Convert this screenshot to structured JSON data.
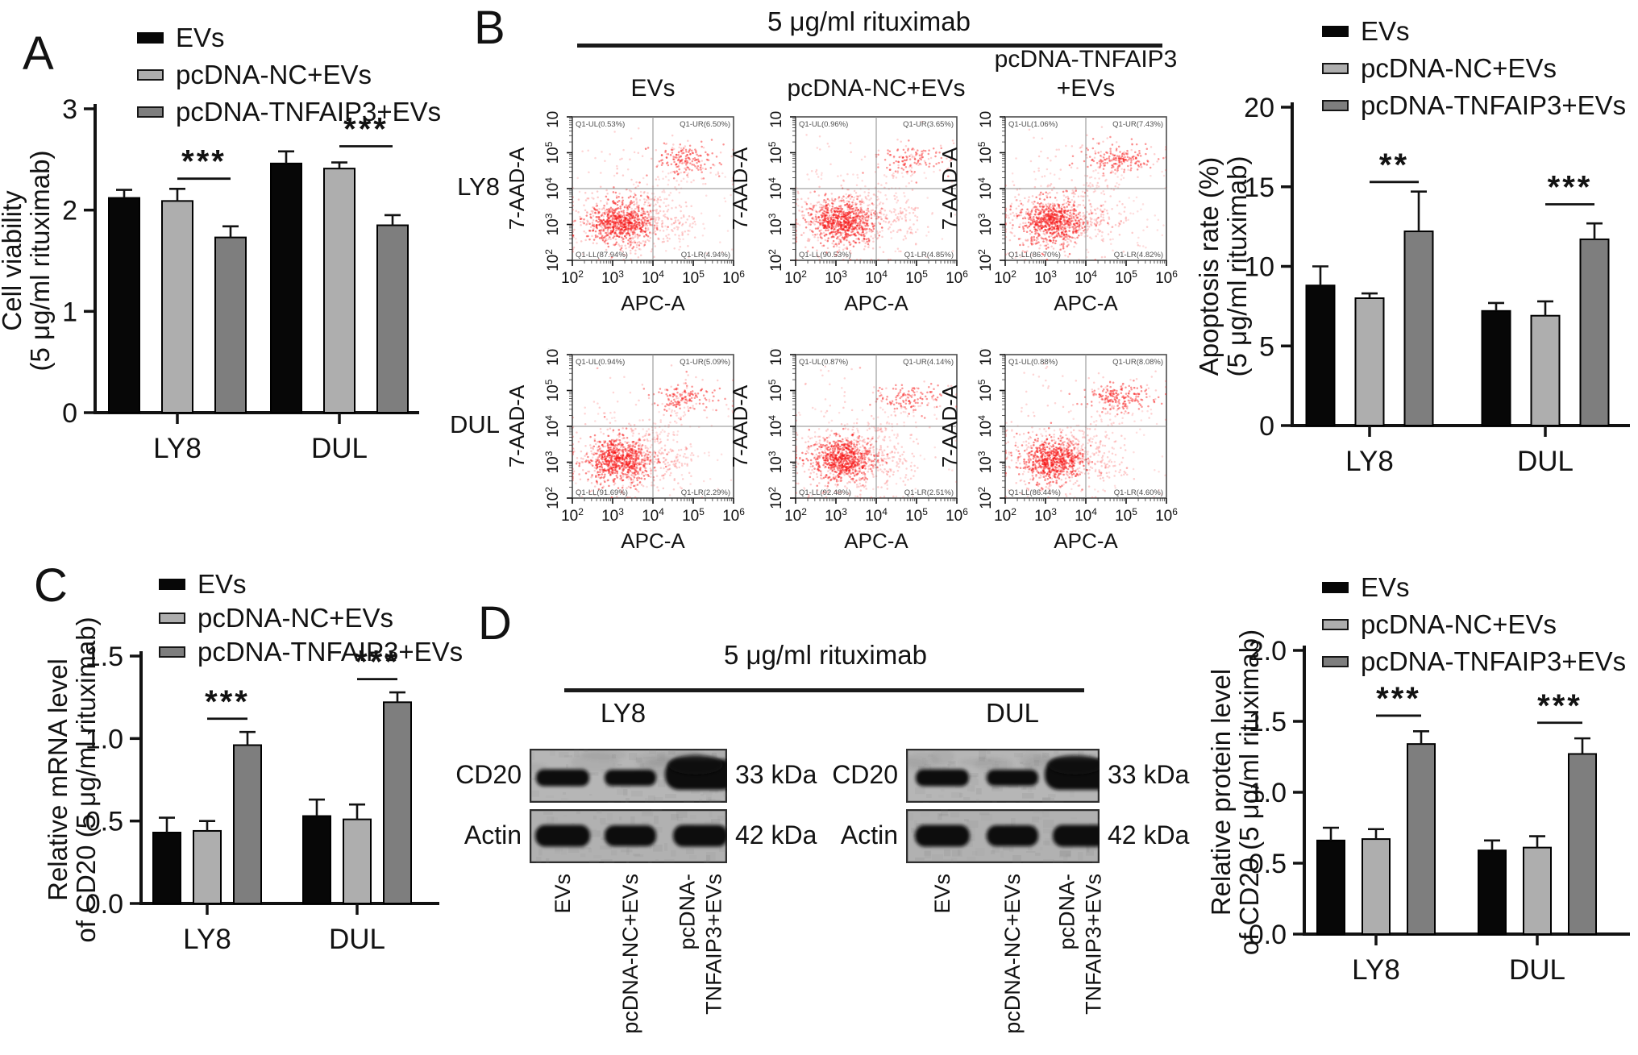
{
  "panels": {
    "a": "A",
    "b": "B",
    "c": "C",
    "d": "D"
  },
  "colors": {
    "evs": "#070707",
    "pcdna_nc": "#aeaeae",
    "pcdna_tnfaip3": "#7e7e7e",
    "scatter_red": "#f81515",
    "axis": "#121212"
  },
  "legend": {
    "items": [
      "EVs",
      "pcDNA-NC+EVs",
      "pcDNA-TNFAIP3+EVs"
    ]
  },
  "flow": {
    "header": "5 μg/ml rituximab",
    "row_labels": [
      "LY8",
      "DUL"
    ],
    "col_titles": [
      [
        "EVs"
      ],
      [
        "pcDNA-NC+EVs"
      ],
      [
        "pcDNA-TNFAIP3",
        "+EVs"
      ]
    ],
    "x_axis_label": "APC-A",
    "y_axis_label": "7-AAD-A",
    "tick_exponents": [
      2,
      3,
      4,
      5,
      6
    ]
  },
  "blots": {
    "header": "5 μg/ml rituximab",
    "groups": [
      {
        "title": "LY8"
      },
      {
        "title": "DUL"
      }
    ],
    "rows": [
      {
        "protein": "CD20",
        "kda": "33 kDa"
      },
      {
        "protein": "Actin",
        "kda": "42 kDa"
      }
    ],
    "lane_labels": [
      [
        "EVs"
      ],
      [
        "pcDNA-NC+EVs"
      ],
      [
        "pcDNA-",
        "TNFAIP3+EVs"
      ]
    ]
  },
  "chart_data": [
    {
      "id": "cell_viability",
      "panel": "A",
      "type": "bar",
      "categories": [
        "LY8",
        "DUL"
      ],
      "series": [
        {
          "name": "EVs",
          "values": [
            2.12,
            2.46
          ],
          "errors": [
            0.08,
            0.12
          ]
        },
        {
          "name": "pcDNA-NC+EVs",
          "values": [
            2.09,
            2.41
          ],
          "errors": [
            0.12,
            0.06
          ]
        },
        {
          "name": "pcDNA-TNFAIP3+EVs",
          "values": [
            1.73,
            1.85
          ],
          "errors": [
            0.11,
            0.1
          ]
        }
      ],
      "ylabel_lines": [
        "Cell viability",
        "(5 μg/ml rituximab)"
      ],
      "ylim": [
        0,
        3
      ],
      "yticks": [
        0,
        1,
        2,
        3
      ],
      "ytick_labels": [
        "0",
        "1",
        "2",
        "3"
      ],
      "grid": false,
      "legend_position": "top",
      "significance": [
        {
          "category": 0,
          "from": 1,
          "to": 2,
          "y": 2.31,
          "label": "***"
        },
        {
          "category": 1,
          "from": 1,
          "to": 2,
          "y": 2.63,
          "label": "***"
        }
      ]
    },
    {
      "id": "apoptosis_rate",
      "panel": "B",
      "type": "bar",
      "categories": [
        "LY8",
        "DUL"
      ],
      "series": [
        {
          "name": "EVs",
          "values": [
            8.8,
            7.2
          ],
          "errors": [
            1.2,
            0.5
          ]
        },
        {
          "name": "pcDNA-NC+EVs",
          "values": [
            8.0,
            6.9
          ],
          "errors": [
            0.3,
            0.9
          ]
        },
        {
          "name": "pcDNA-TNFAIP3+EVs",
          "values": [
            12.2,
            11.7
          ],
          "errors": [
            2.5,
            1.0
          ]
        }
      ],
      "ylabel_lines": [
        "Apoptosis rate (%)",
        "(5 μg/ml rituximab)"
      ],
      "ylim": [
        0,
        20
      ],
      "yticks": [
        0,
        5,
        10,
        15,
        20
      ],
      "ytick_labels": [
        "0",
        "5",
        "10",
        "15",
        "20"
      ],
      "grid": false,
      "legend_position": "top",
      "significance": [
        {
          "category": 0,
          "from": 1,
          "to": 2,
          "y": 15.3,
          "label": "**"
        },
        {
          "category": 1,
          "from": 1,
          "to": 2,
          "y": 13.9,
          "label": "***"
        }
      ]
    },
    {
      "id": "mrna_cd20",
      "panel": "C",
      "type": "bar",
      "categories": [
        "LY8",
        "DUL"
      ],
      "series": [
        {
          "name": "EVs",
          "values": [
            0.43,
            0.53
          ],
          "errors": [
            0.09,
            0.1
          ]
        },
        {
          "name": "pcDNA-NC+EVs",
          "values": [
            0.44,
            0.51
          ],
          "errors": [
            0.06,
            0.09
          ]
        },
        {
          "name": "pcDNA-TNFAIP3+EVs",
          "values": [
            0.96,
            1.22
          ],
          "errors": [
            0.08,
            0.06
          ]
        }
      ],
      "ylabel_lines": [
        "Relative mRNA level",
        "of CD20 (5 μg/ml rituximab)"
      ],
      "ylim": [
        0,
        1.5
      ],
      "yticks": [
        0,
        0.5,
        1.0,
        1.5
      ],
      "ytick_labels": [
        "0.0",
        "0.5",
        "1.0",
        "1.5"
      ],
      "grid": false,
      "legend_position": "top",
      "significance": [
        {
          "category": 0,
          "from": 1,
          "to": 2,
          "y": 1.12,
          "label": "***"
        },
        {
          "category": 1,
          "from": 1,
          "to": 2,
          "y": 1.36,
          "label": "***"
        }
      ]
    },
    {
      "id": "protein_cd20",
      "panel": "D",
      "type": "bar",
      "categories": [
        "LY8",
        "DUL"
      ],
      "series": [
        {
          "name": "EVs",
          "values": [
            0.66,
            0.59
          ],
          "errors": [
            0.09,
            0.07
          ]
        },
        {
          "name": "pcDNA-NC+EVs",
          "values": [
            0.67,
            0.61
          ],
          "errors": [
            0.07,
            0.08
          ]
        },
        {
          "name": "pcDNA-TNFAIP3+EVs",
          "values": [
            1.34,
            1.27
          ],
          "errors": [
            0.09,
            0.11
          ]
        }
      ],
      "ylabel_lines": [
        "Relative protein level",
        "of CD20 (5 μg/ml rituximab)"
      ],
      "ylim": [
        0,
        2.0
      ],
      "yticks": [
        0,
        0.5,
        1.0,
        1.5,
        2.0
      ],
      "ytick_labels": [
        "0.0",
        "0.5",
        "1.0",
        "1.5",
        "2.0"
      ],
      "grid": false,
      "legend_position": "top",
      "significance": [
        {
          "category": 0,
          "from": 1,
          "to": 2,
          "y": 1.54,
          "label": "***"
        },
        {
          "category": 1,
          "from": 1,
          "to": 2,
          "y": 1.49,
          "label": "***"
        }
      ]
    },
    {
      "id": "flow_cytometry",
      "panel": "B",
      "type": "scatter",
      "x_label": "APC-A",
      "y_label": "7-AAD-A",
      "x_scale": "log10",
      "y_scale": "log10",
      "x_range": [
        "1e2",
        "1e6"
      ],
      "y_range": [
        "1e2",
        "1e6"
      ],
      "plots": [
        {
          "cell_line": "LY8",
          "treatment": "EVs",
          "quadrants": {
            "Q1_UL_pct": 0.53,
            "Q1_UR_pct": 6.5,
            "Q1_LL_pct": 87.94,
            "Q1_LR_pct": 4.94
          },
          "quadrant_labels": {
            "ul": "Q1-UL(0.53%)",
            "ur": "Q1-UR(6.50%)",
            "ll": "Q1-LL(87.94%)",
            "lr": "Q1-LR(4.94%)"
          }
        },
        {
          "cell_line": "LY8",
          "treatment": "pcDNA-NC+EVs",
          "quadrants": {
            "Q1_UL_pct": 0.96,
            "Q1_UR_pct": 3.65,
            "Q1_LL_pct": 90.53,
            "Q1_LR_pct": 4.85
          },
          "quadrant_labels": {
            "ul": "Q1-UL(0.96%)",
            "ur": "Q1-UR(3.65%)",
            "ll": "Q1-LL(90.53%)",
            "lr": "Q1-LR(4.85%)"
          }
        },
        {
          "cell_line": "LY8",
          "treatment": "pcDNA-TNFAIP3+EVs",
          "quadrants": {
            "Q1_UL_pct": 1.06,
            "Q1_UR_pct": 7.43,
            "Q1_LL_pct": 86.7,
            "Q1_LR_pct": 4.82
          },
          "quadrant_labels": {
            "ul": "Q1-UL(1.06%)",
            "ur": "Q1-UR(7.43%)",
            "ll": "Q1-LL(86.70%)",
            "lr": "Q1-LR(4.82%)"
          }
        },
        {
          "cell_line": "DUL",
          "treatment": "EVs",
          "quadrants": {
            "Q1_UL_pct": 0.94,
            "Q1_UR_pct": 5.09,
            "Q1_LL_pct": 91.69,
            "Q1_LR_pct": 2.29
          },
          "quadrant_labels": {
            "ul": "Q1-UL(0.94%)",
            "ur": "Q1-UR(5.09%)",
            "ll": "Q1-LL(91.69%)",
            "lr": "Q1-LR(2.29%)"
          }
        },
        {
          "cell_line": "DUL",
          "treatment": "pcDNA-NC+EVs",
          "quadrants": {
            "Q1_UL_pct": 0.87,
            "Q1_UR_pct": 4.14,
            "Q1_LL_pct": 92.48,
            "Q1_LR_pct": 2.51
          },
          "quadrant_labels": {
            "ul": "Q1-UL(0.87%)",
            "ur": "Q1-UR(4.14%)",
            "ll": "Q1-LL(92.48%)",
            "lr": "Q1-LR(2.51%)"
          }
        },
        {
          "cell_line": "DUL",
          "treatment": "pcDNA-TNFAIP3+EVs",
          "quadrants": {
            "Q1_UL_pct": 0.88,
            "Q1_UR_pct": 8.08,
            "Q1_LL_pct": 86.44,
            "Q1_LR_pct": 4.6
          },
          "quadrant_labels": {
            "ul": "Q1-UL(0.88%)",
            "ur": "Q1-UR(8.08%)",
            "ll": "Q1-LL(86.44%)",
            "lr": "Q1-LR(4.60%)"
          }
        }
      ]
    }
  ]
}
